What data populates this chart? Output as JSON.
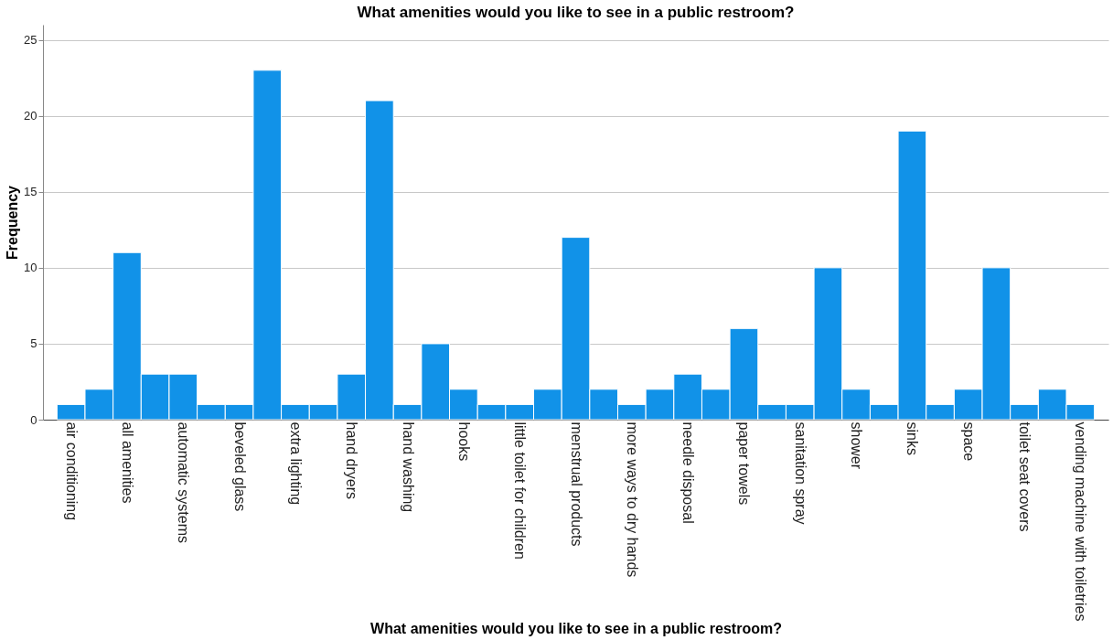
{
  "chart_data": {
    "type": "bar",
    "title": "What amenities would you like to see in a public restroom?",
    "xlabel": "What amenities would you like to see in a public restroom?",
    "ylabel": "Frequency",
    "categories": [
      "air conditioning",
      null,
      "all amenities",
      null,
      "automatic systems",
      null,
      "beveled glass",
      null,
      "extra lighting",
      null,
      "hand dryers",
      null,
      "hand washing",
      null,
      "hooks",
      null,
      "little toilet for children",
      null,
      "menstrual products",
      null,
      "more ways to dry hands",
      null,
      "needle disposal",
      null,
      "paper towels",
      null,
      "sanitation spray",
      null,
      "shower",
      null,
      "sinks",
      null,
      "space",
      null,
      "toilet seat covers",
      null,
      "vending machine with toiletries"
    ],
    "values": [
      1,
      2,
      11,
      3,
      3,
      1,
      1,
      23,
      1,
      1,
      3,
      21,
      1,
      5,
      2,
      1,
      1,
      2,
      12,
      2,
      1,
      2,
      3,
      2,
      6,
      1,
      1,
      10,
      2,
      1,
      19,
      1,
      2,
      10,
      1,
      2,
      1
    ],
    "color": "#1192e8",
    "ylim": [
      0,
      26
    ],
    "yticks": [
      0,
      5,
      10,
      15,
      20,
      25
    ],
    "grid": "y"
  }
}
